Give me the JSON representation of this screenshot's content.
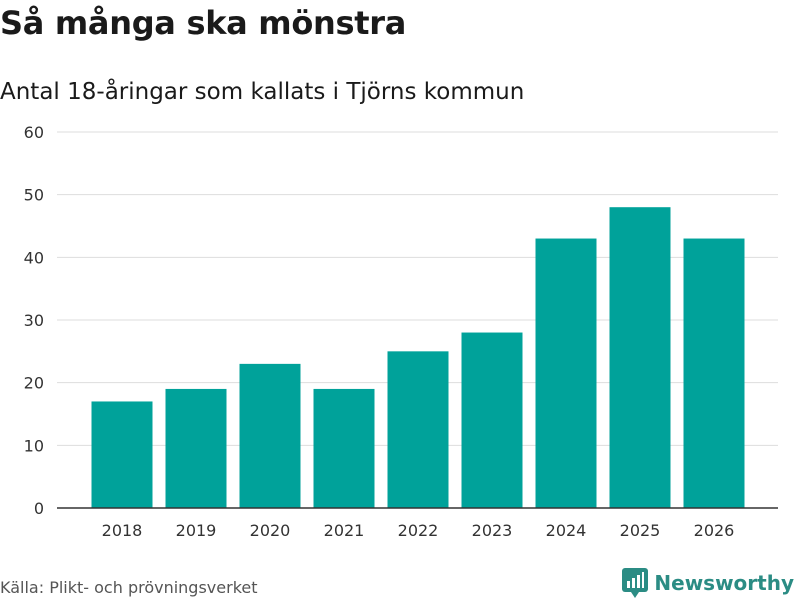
{
  "title": "Så många ska mönstra",
  "subtitle": "Antal 18-åringar som kallats i Tjörns kommun",
  "source": "Källa: Plikt- och prövningsverket",
  "brand": {
    "name": "Newsworthy",
    "icon": "newsworthy-logo-icon",
    "color": "#2b8c84"
  },
  "colors": {
    "bar": "#00a29a",
    "grid": "#dddddd",
    "axis": "#333333",
    "text": "#333333"
  },
  "chart_data": {
    "type": "bar",
    "title": "Så många ska mönstra",
    "subtitle": "Antal 18-åringar som kallats i Tjörns kommun",
    "xlabel": "",
    "ylabel": "",
    "categories": [
      "2018",
      "2019",
      "2020",
      "2021",
      "2022",
      "2023",
      "2024",
      "2025",
      "2026"
    ],
    "values": [
      17,
      19,
      23,
      19,
      25,
      28,
      43,
      48,
      43
    ],
    "ylim": [
      0,
      60
    ],
    "yticks": [
      0,
      10,
      20,
      30,
      40,
      50,
      60
    ],
    "grid": true,
    "legend": "none"
  }
}
